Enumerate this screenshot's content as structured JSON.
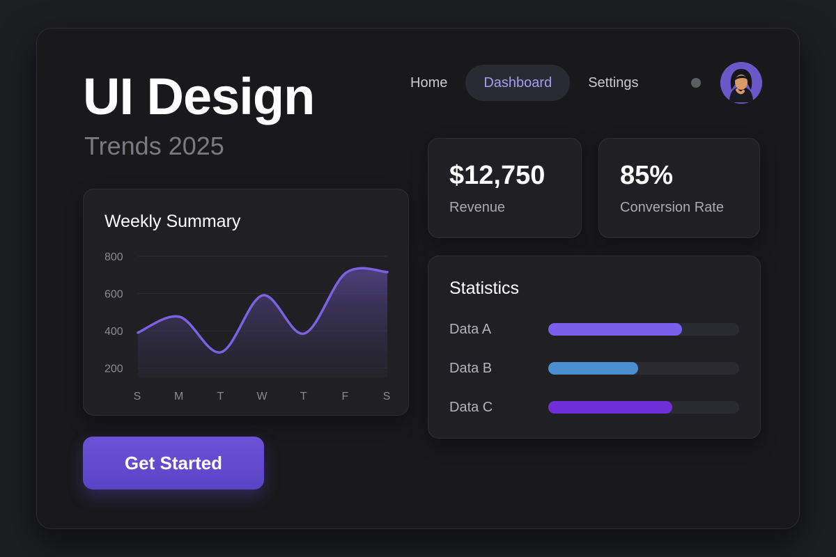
{
  "hero": {
    "title": "UI Design",
    "subtitle": "Trends 2025"
  },
  "nav": {
    "items": [
      {
        "label": "Home",
        "active": false
      },
      {
        "label": "Dashboard",
        "active": true
      },
      {
        "label": "Settings",
        "active": false
      }
    ]
  },
  "summary": {
    "title": "Weekly Summary",
    "chart_data": {
      "type": "area",
      "categories": [
        "S",
        "M",
        "T",
        "W",
        "T",
        "F",
        "S"
      ],
      "series": [
        {
          "values": [
            390,
            475,
            285,
            590,
            385,
            710,
            715
          ],
          "color": "#7a63e0"
        }
      ],
      "yticks": [
        200,
        400,
        600,
        800
      ],
      "ylim": [
        150,
        800
      ],
      "grid": true
    }
  },
  "kpis": {
    "revenue": {
      "value": "$12,750",
      "label": "Revenue"
    },
    "conversion": {
      "value": "85%",
      "label": "Conversion Rate"
    }
  },
  "statistics": {
    "title": "Statistics",
    "items": [
      {
        "label": "Data A",
        "value": 0.7,
        "color": "#7a5fea"
      },
      {
        "label": "Data B",
        "value": 0.47,
        "color": "#4b8fd1"
      },
      {
        "label": "Data C",
        "value": 0.65,
        "color": "#6f2fd6"
      }
    ]
  },
  "cta": {
    "label": "Get Started"
  },
  "colors": {
    "accent": "#6a52d6",
    "background": "#19191c",
    "card": "#202024"
  }
}
